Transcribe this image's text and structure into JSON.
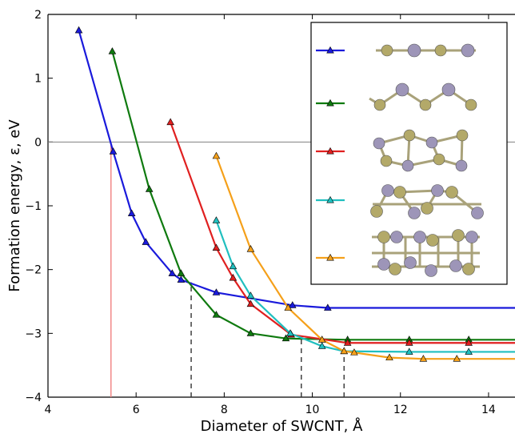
{
  "chart_data": {
    "type": "line",
    "title": "",
    "xlabel": "Diameter of SWCNT, Å",
    "ylabel": "Formation energy, ε, eV",
    "xlim": [
      4,
      14.6
    ],
    "ylim": [
      -4,
      2
    ],
    "x_ticks": [
      4,
      6,
      8,
      10,
      12,
      14
    ],
    "y_ticks": [
      -4,
      -3,
      -2,
      -1,
      0,
      1,
      2
    ],
    "x_tick_labels": [
      "4",
      "6",
      "8",
      "10",
      "12",
      "14"
    ],
    "y_tick_labels": [
      "−4",
      "−3",
      "−2",
      "−1",
      "0",
      "1",
      "2"
    ],
    "grid": false,
    "legend_position": "top-right",
    "horizontal_reference_line": {
      "y": 0,
      "color": "#808080"
    },
    "vertical_reference_lines": [
      {
        "x": 5.43,
        "from_y": -4,
        "to_y": 0,
        "style": "solid",
        "color": "#f08080"
      },
      {
        "x": 7.25,
        "from_y": -4,
        "to_y": -2.2,
        "style": "dashed",
        "color": "#333333"
      },
      {
        "x": 9.75,
        "from_y": -4,
        "to_y": -3.05,
        "style": "dashed",
        "color": "#333333"
      },
      {
        "x": 10.72,
        "from_y": -4,
        "to_y": -3.28,
        "style": "dashed",
        "color": "#333333"
      }
    ],
    "series": [
      {
        "color": "#1a1adb",
        "marker": "triangle",
        "x": [
          4.7,
          5.48,
          5.9,
          6.22,
          6.82,
          7.02,
          7.82,
          9.55,
          10.35,
          14.6
        ],
        "y": [
          1.75,
          -0.15,
          -1.12,
          -1.57,
          -2.06,
          -2.16,
          -2.36,
          -2.56,
          -2.6,
          -2.6
        ]
      },
      {
        "color": "#0f7a0f",
        "marker": "triangle",
        "x": [
          5.46,
          6.3,
          7.02,
          7.82,
          8.6,
          9.4,
          10.8,
          12.2,
          13.55,
          14.6
        ],
        "y": [
          1.42,
          -0.74,
          -2.06,
          -2.71,
          -3.0,
          -3.08,
          -3.1,
          -3.1,
          -3.1,
          -3.1
        ]
      },
      {
        "color": "#e02020",
        "marker": "triangle",
        "x": [
          6.78,
          7.82,
          8.2,
          8.6,
          9.52,
          10.8,
          12.2,
          13.55,
          14.6
        ],
        "y": [
          0.31,
          -1.66,
          -2.13,
          -2.54,
          -3.02,
          -3.15,
          -3.15,
          -3.15,
          -3.15
        ]
      },
      {
        "color": "#20bfbf",
        "marker": "triangle",
        "x": [
          7.82,
          8.2,
          8.6,
          9.5,
          10.22,
          10.72,
          12.2,
          13.55,
          14.6
        ],
        "y": [
          -1.23,
          -1.95,
          -2.41,
          -3.0,
          -3.2,
          -3.28,
          -3.29,
          -3.29,
          -3.29
        ]
      },
      {
        "color": "#f5a01a",
        "marker": "triangle",
        "x": [
          7.82,
          8.6,
          9.45,
          10.22,
          10.72,
          10.95,
          11.75,
          12.52,
          13.28,
          14.6
        ],
        "y": [
          -0.22,
          -1.68,
          -2.6,
          -3.1,
          -3.28,
          -3.3,
          -3.38,
          -3.4,
          -3.4,
          -3.4
        ]
      }
    ]
  },
  "legend_structures": [
    {
      "description_icon": "linear chain structure"
    },
    {
      "description_icon": "zigzag chain structure"
    },
    {
      "description_icon": "double chain structure"
    },
    {
      "description_icon": "twisted chain structure"
    },
    {
      "description_icon": "ladder cluster structure"
    }
  ],
  "colors": {
    "atom_metal": "#b3a969",
    "atom_chalcogen": "#9d95b8",
    "bond": "#a9a27a"
  }
}
